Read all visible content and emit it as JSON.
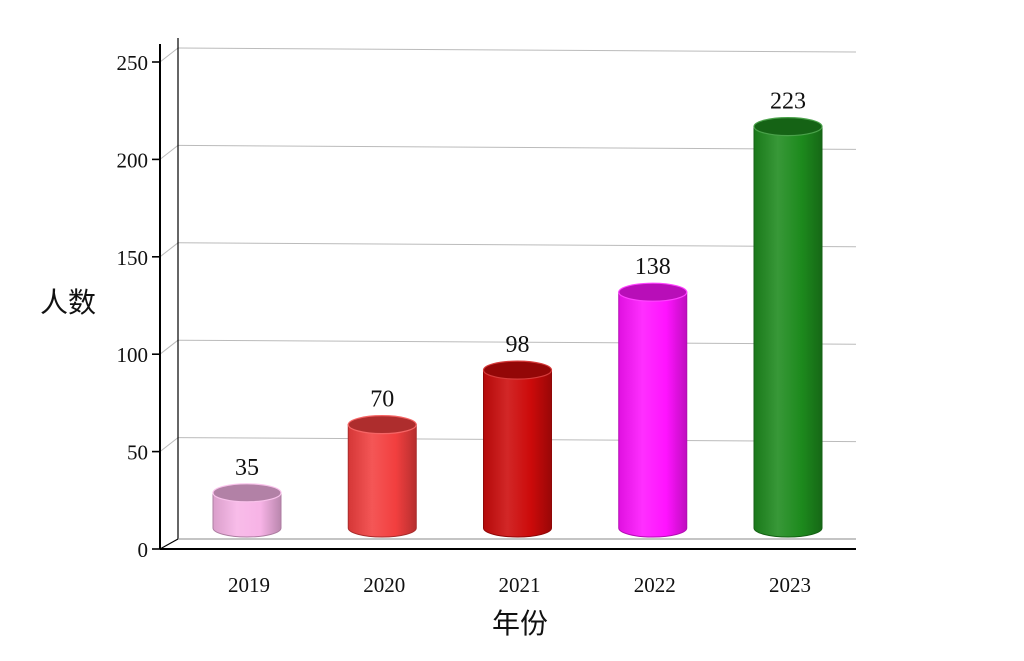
{
  "chart_data": {
    "type": "bar",
    "style": "3d-cylinder",
    "categories": [
      "2019",
      "2020",
      "2021",
      "2022",
      "2023"
    ],
    "values": [
      35,
      70,
      98,
      138,
      223
    ],
    "colors": [
      "#f7b3e6",
      "#f23f3f",
      "#cc0a0a",
      "#ff13ff",
      "#1d8a1d"
    ],
    "xlabel": "年份",
    "ylabel": "人数",
    "ylim": [
      0,
      250
    ],
    "yticks": [
      0,
      50,
      100,
      150,
      200,
      250
    ],
    "grid": true,
    "legend": "none"
  }
}
